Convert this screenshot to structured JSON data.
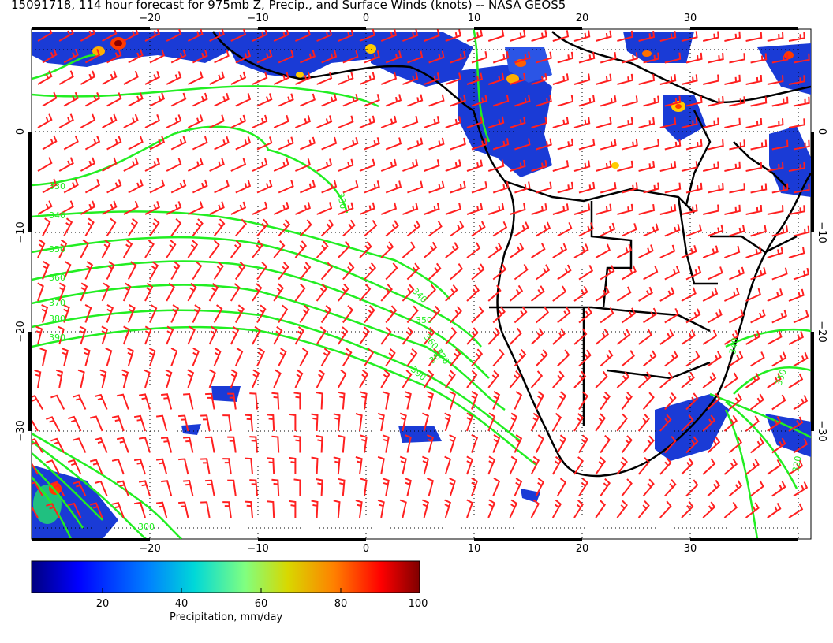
{
  "title": "15091718, 114 hour forecast for 975mb Z, Precip., and Surface Winds (knots) -- NASA GEOS5",
  "map": {
    "lon_ticks_top": [
      "−20",
      "−10",
      "0",
      "10",
      "20",
      "30"
    ],
    "lon_ticks_bottom": [
      "−20",
      "−10",
      "0",
      "10",
      "20",
      "30"
    ],
    "lat_ticks_left": [
      "0",
      "−10",
      "−20",
      "−30"
    ],
    "lat_ticks_right": [
      "0",
      "−10",
      "−20",
      "−30"
    ],
    "contour_labels": [
      "330",
      "340",
      "350",
      "360",
      "370",
      "380",
      "390",
      "330",
      "340",
      "350",
      "360",
      "370",
      "380",
      "390",
      "300",
      "320",
      "340",
      "350"
    ],
    "colors": {
      "wind_barbs": "#ff2020",
      "contours": "#22ee22",
      "coastline": "#000000",
      "grid": "#000000"
    }
  },
  "colorbar": {
    "label": "Precipitation, mm/day",
    "ticks": [
      "20",
      "40",
      "60",
      "80",
      "100"
    ],
    "tick_values": [
      20,
      40,
      60,
      80,
      100
    ],
    "range": [
      0,
      100
    ],
    "colors": [
      "#00007f",
      "#0000ff",
      "#007fff",
      "#00d0d0",
      "#7fff7f",
      "#d0d000",
      "#ff7f00",
      "#ff0000",
      "#7f0000"
    ]
  }
}
